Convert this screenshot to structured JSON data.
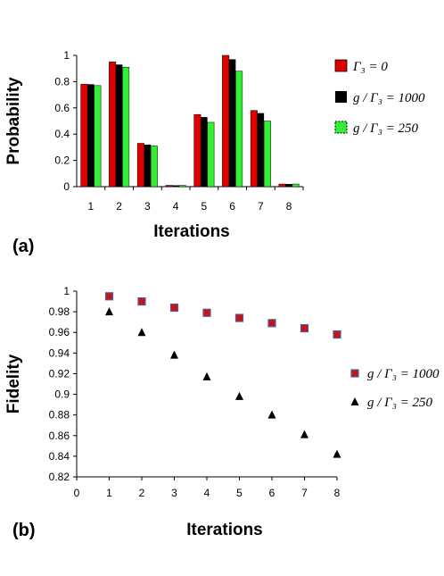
{
  "chart_data": [
    {
      "type": "bar",
      "panel_label": "(a)",
      "xlabel": "Iterations",
      "ylabel": "Probability",
      "categories": [
        "1",
        "2",
        "3",
        "4",
        "5",
        "6",
        "7",
        "8"
      ],
      "ylim": [
        0,
        1
      ],
      "yticks": [
        "0",
        "0.2",
        "0.4",
        "0.6",
        "0.8",
        "1"
      ],
      "legend_position": "right",
      "series": [
        {
          "name": "Γ₃ = 0",
          "color": "#e00000",
          "values": [
            0.78,
            0.95,
            0.33,
            0.01,
            0.55,
            1.0,
            0.58,
            0.02
          ]
        },
        {
          "name": "g / Γ₃ = 1000",
          "color": "#000000",
          "values": [
            0.78,
            0.93,
            0.32,
            0.01,
            0.53,
            0.97,
            0.56,
            0.02
          ]
        },
        {
          "name": "g / Γ₃ = 250",
          "color": "#33ee33",
          "values": [
            0.77,
            0.91,
            0.31,
            0.01,
            0.49,
            0.88,
            0.5,
            0.02
          ]
        }
      ]
    },
    {
      "type": "scatter",
      "panel_label": "(b)",
      "xlabel": "Iterations",
      "ylabel": "Fidelity",
      "xlim": [
        0,
        8
      ],
      "ylim": [
        0.82,
        1
      ],
      "xticks": [
        "0",
        "1",
        "2",
        "3",
        "4",
        "5",
        "6",
        "7",
        "8"
      ],
      "yticks": [
        "0.82",
        "0.84",
        "0.86",
        "0.88",
        "0.9",
        "0.92",
        "0.94",
        "0.96",
        "0.98",
        "1"
      ],
      "legend_position": "right",
      "series": [
        {
          "name": "g / Γ₃ = 1000",
          "marker": "square",
          "color": "#cc1111",
          "edge": "#4b5fa8",
          "x": [
            1,
            2,
            3,
            4,
            5,
            6,
            7,
            8
          ],
          "y": [
            0.995,
            0.99,
            0.984,
            0.979,
            0.974,
            0.969,
            0.964,
            0.958
          ]
        },
        {
          "name": "g / Γ₃ = 250",
          "marker": "triangle",
          "color": "#000000",
          "x": [
            1,
            2,
            3,
            4,
            5,
            6,
            7,
            8
          ],
          "y": [
            0.98,
            0.96,
            0.938,
            0.917,
            0.898,
            0.88,
            0.861,
            0.842
          ]
        }
      ]
    }
  ]
}
